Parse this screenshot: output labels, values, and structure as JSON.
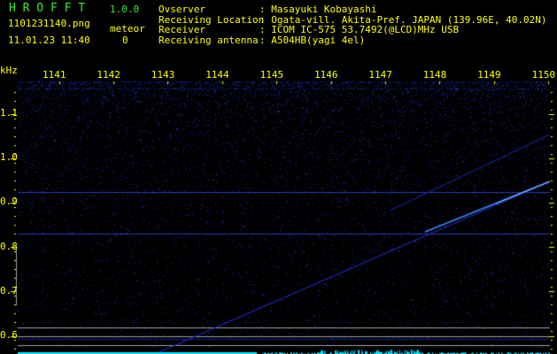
{
  "header": {
    "app_name": "H R O F F T",
    "version": "1.0.0",
    "filename": "1101231140.png",
    "datetime": "11.01.23 11:40",
    "meteor_label": "meteor",
    "meteor_count": "0",
    "info": [
      {
        "label": "Ovserver",
        "value": ": Masayuki Kobayashi"
      },
      {
        "label": "Receiving Location",
        "value": ": Ogata-vill. Akita-Pref. JAPAN (139.96E, 40.02N)"
      },
      {
        "label": "Receiver",
        "value": ": ICOM IC-575 53.7492(@LCD)MHz USB"
      },
      {
        "label": "Receiving antenna",
        "value": ": A504HB(yagi 4el)"
      }
    ]
  },
  "spectrogram": {
    "unit": "kHz",
    "x_ticks": [
      "1141",
      "1142",
      "1143",
      "1144",
      "1145",
      "1146",
      "1147",
      "1148",
      "1149",
      "1150"
    ],
    "y_ticks": [
      "1.1",
      "1.0",
      "0.9",
      "0.8",
      "0.7",
      "0.6"
    ],
    "colors": {
      "signal": "#2255ff",
      "text": "#ffff00",
      "title": "#33ee33",
      "level": "#00e5ff",
      "reference": "#a0a0a0"
    }
  }
}
